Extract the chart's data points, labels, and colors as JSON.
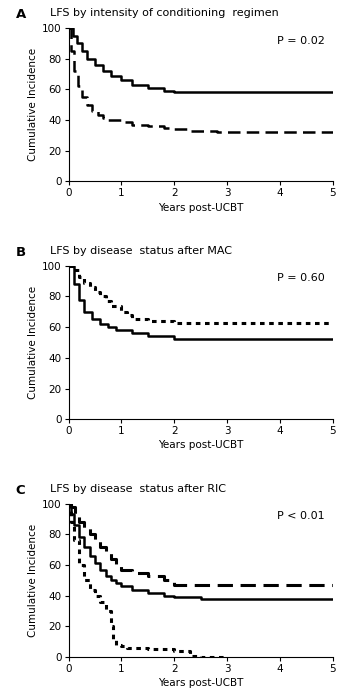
{
  "panels": [
    {
      "label": "A",
      "title": "LFS by intensity of conditioning  regimen",
      "pvalue": "P = 0.02",
      "curves": [
        {
          "style": "solid",
          "linewidth": 1.8,
          "x": [
            0,
            0.08,
            0.15,
            0.25,
            0.35,
            0.5,
            0.65,
            0.8,
            1.0,
            1.2,
            1.5,
            1.8,
            2.0,
            2.5,
            3.0,
            3.5,
            4.0,
            4.5,
            5.0
          ],
          "y": [
            100,
            95,
            90,
            85,
            80,
            76,
            72,
            69,
            66,
            63,
            61,
            59,
            58,
            58,
            58,
            58,
            58,
            58,
            58
          ]
        },
        {
          "style": "dashed",
          "linewidth": 1.8,
          "x": [
            0,
            0.05,
            0.1,
            0.18,
            0.25,
            0.35,
            0.45,
            0.55,
            0.65,
            0.75,
            0.85,
            1.0,
            1.2,
            1.5,
            1.8,
            2.0,
            2.3,
            2.8,
            3.5,
            4.0,
            4.5,
            5.0
          ],
          "y": [
            100,
            85,
            72,
            62,
            55,
            50,
            46,
            43,
            41,
            40,
            40,
            39,
            37,
            36,
            35,
            34,
            33,
            32,
            32,
            32,
            32,
            32
          ]
        }
      ]
    },
    {
      "label": "B",
      "title": "LFS by disease  status after MAC",
      "pvalue": "P = 0.60",
      "curves": [
        {
          "style": "solid",
          "linewidth": 1.8,
          "x": [
            0,
            0.1,
            0.2,
            0.3,
            0.45,
            0.6,
            0.75,
            0.9,
            1.2,
            1.5,
            2.0,
            2.2,
            2.5,
            3.0,
            3.5,
            4.0,
            4.5,
            5.0
          ],
          "y": [
            100,
            88,
            78,
            70,
            65,
            62,
            60,
            58,
            56,
            54,
            52,
            52,
            52,
            52,
            52,
            52,
            52,
            52
          ]
        },
        {
          "style": "dotted",
          "linewidth": 2.2,
          "x": [
            0,
            0.05,
            0.1,
            0.2,
            0.3,
            0.4,
            0.5,
            0.6,
            0.7,
            0.8,
            1.0,
            1.1,
            1.2,
            1.5,
            2.0,
            2.5,
            3.0,
            3.5,
            4.0,
            4.5,
            5.0
          ],
          "y": [
            100,
            100,
            97,
            93,
            89,
            86,
            83,
            80,
            77,
            74,
            70,
            68,
            65,
            64,
            63,
            63,
            63,
            63,
            63,
            63,
            63
          ]
        }
      ]
    },
    {
      "label": "C",
      "title": "LFS by disease  status after RIC",
      "pvalue": "P < 0.01",
      "curves": [
        {
          "style": "solid",
          "linewidth": 1.8,
          "x": [
            0,
            0.05,
            0.1,
            0.2,
            0.3,
            0.4,
            0.5,
            0.6,
            0.7,
            0.8,
            0.9,
            1.0,
            1.2,
            1.5,
            1.8,
            2.0,
            2.5,
            3.0,
            3.5,
            4.0,
            4.5,
            5.0
          ],
          "y": [
            100,
            93,
            86,
            78,
            72,
            66,
            61,
            57,
            53,
            50,
            48,
            46,
            44,
            42,
            40,
            39,
            38,
            38,
            38,
            38,
            38,
            38
          ]
        },
        {
          "style": "dashed",
          "linewidth": 2.2,
          "x": [
            0,
            0.05,
            0.12,
            0.2,
            0.3,
            0.4,
            0.5,
            0.6,
            0.7,
            0.8,
            0.9,
            1.0,
            1.2,
            1.5,
            1.8,
            2.0,
            2.5,
            3.0,
            3.5,
            4.0,
            4.5,
            5.0
          ],
          "y": [
            100,
            98,
            93,
            88,
            84,
            80,
            76,
            72,
            68,
            64,
            60,
            57,
            55,
            53,
            50,
            47,
            47,
            47,
            47,
            47,
            47,
            47
          ]
        },
        {
          "style": "dotted",
          "linewidth": 2.2,
          "x": [
            0,
            0.05,
            0.1,
            0.2,
            0.3,
            0.4,
            0.5,
            0.6,
            0.7,
            0.8,
            0.85,
            0.9,
            1.0,
            1.1,
            1.5,
            2.0,
            2.3,
            2.5,
            3.0
          ],
          "y": [
            100,
            88,
            76,
            60,
            50,
            44,
            40,
            36,
            30,
            20,
            12,
            8,
            7,
            6,
            5,
            4,
            1,
            0,
            0
          ]
        }
      ]
    }
  ],
  "ylabel": "Cumulative Incidence",
  "xlabel": "Years post-UCBT",
  "ylim": [
    0,
    100
  ],
  "xlim": [
    0,
    5
  ],
  "yticks": [
    0,
    20,
    40,
    60,
    80,
    100
  ],
  "xticks": [
    0,
    1,
    2,
    3,
    4,
    5
  ],
  "color": "#000000",
  "background": "#ffffff",
  "fig_width": 3.43,
  "fig_height": 6.99,
  "dpi": 100
}
